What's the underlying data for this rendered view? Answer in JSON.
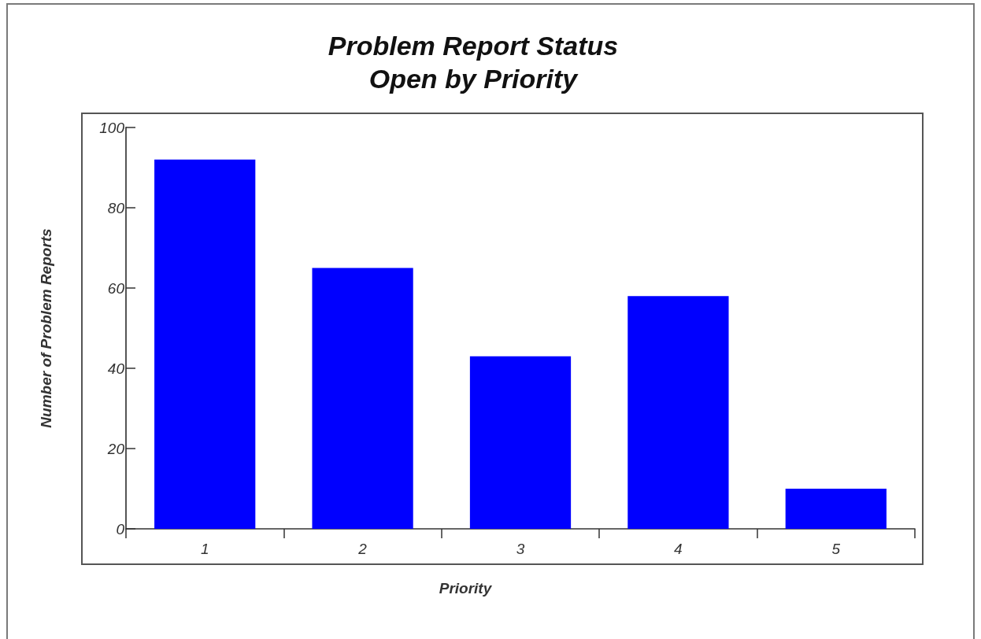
{
  "chart_data": {
    "type": "bar",
    "title": "Problem Report Status",
    "subtitle": "Open by Priority",
    "xlabel": "Priority",
    "ylabel": "Number of Problem Reports",
    "categories": [
      "1",
      "2",
      "3",
      "4",
      "5"
    ],
    "values": [
      92,
      65,
      43,
      58,
      10
    ],
    "color": "#0000ff",
    "ylim": [
      0,
      100
    ],
    "yticks": [
      0,
      20,
      40,
      60,
      80,
      100
    ]
  }
}
